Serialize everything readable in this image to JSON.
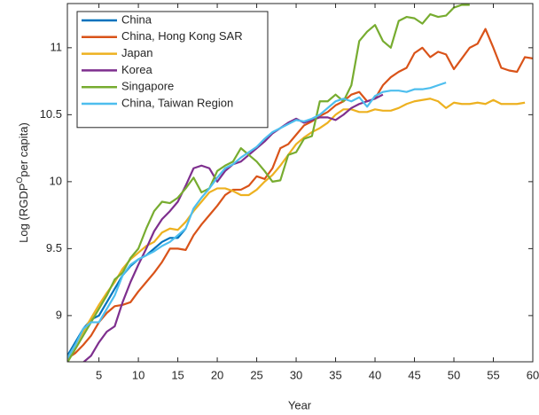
{
  "chart_data": {
    "type": "line",
    "xlabel": "Year",
    "ylabel": [
      "Log (RGDP",
      "O",
      "per capita)"
    ],
    "x": [
      1,
      2,
      3,
      4,
      5,
      6,
      7,
      8,
      9,
      10,
      11,
      12,
      13,
      14,
      15,
      16,
      17,
      18,
      19,
      20,
      21,
      22,
      23,
      24,
      25,
      26,
      27,
      28,
      29,
      30,
      31,
      32,
      33,
      34,
      35,
      36,
      37,
      38,
      39,
      40,
      41,
      42,
      43,
      44,
      45,
      46,
      47,
      48,
      49,
      50,
      51,
      52,
      53,
      54,
      55,
      56,
      57,
      58,
      59,
      60
    ],
    "xlim": [
      1,
      60
    ],
    "xticks": [
      5,
      10,
      15,
      20,
      25,
      30,
      35,
      40,
      45,
      50,
      55,
      60
    ],
    "ylim": [
      8.655,
      11.33
    ],
    "yticks": [
      9,
      9.5,
      10,
      10.5,
      11
    ],
    "grid": false,
    "legend": "upper-left",
    "series": [
      {
        "name": "China",
        "color": "#0072BD",
        "values": [
          8.7,
          8.8,
          8.9,
          8.97,
          9.0,
          9.1,
          9.2,
          9.3,
          9.37,
          9.42,
          9.45,
          9.5,
          9.55,
          9.58,
          9.58,
          9.65,
          null,
          null,
          null,
          null,
          null,
          null,
          null,
          null,
          null,
          null,
          null,
          null,
          null,
          null,
          null,
          null,
          null,
          null,
          null,
          null,
          null,
          null,
          null,
          null,
          null,
          null,
          null,
          null,
          null,
          null,
          null,
          null,
          null,
          null,
          null,
          null,
          null,
          null,
          null,
          null,
          null,
          null,
          null,
          null
        ]
      },
      {
        "name": "China, Hong Kong SAR",
        "color": "#D95319",
        "values": [
          8.68,
          8.72,
          8.78,
          8.85,
          8.95,
          9.02,
          9.07,
          9.08,
          9.1,
          9.18,
          9.25,
          9.32,
          9.4,
          9.5,
          9.5,
          9.49,
          9.6,
          9.68,
          9.75,
          9.82,
          9.9,
          9.94,
          9.94,
          9.97,
          10.04,
          10.02,
          10.1,
          10.25,
          10.28,
          10.35,
          10.42,
          10.45,
          10.49,
          10.52,
          10.57,
          10.6,
          10.65,
          10.67,
          10.6,
          10.62,
          10.72,
          10.78,
          10.82,
          10.85,
          10.96,
          11.0,
          10.93,
          10.97,
          10.95,
          10.84,
          10.92,
          11.0,
          11.03,
          11.14,
          11.0,
          10.85,
          10.83,
          10.82,
          10.93,
          10.92
        ]
      },
      {
        "name": "Japan",
        "color": "#EDB120",
        "values": [
          8.68,
          8.78,
          8.88,
          8.98,
          9.08,
          9.17,
          9.25,
          9.35,
          9.42,
          9.47,
          9.52,
          9.55,
          9.62,
          9.65,
          9.64,
          9.7,
          9.78,
          9.85,
          9.92,
          9.95,
          9.95,
          9.93,
          9.9,
          9.9,
          9.94,
          10.0,
          10.05,
          10.12,
          10.2,
          10.28,
          10.33,
          10.37,
          10.4,
          10.44,
          10.5,
          10.54,
          10.54,
          10.52,
          10.52,
          10.54,
          10.53,
          10.53,
          10.55,
          10.58,
          10.6,
          10.61,
          10.62,
          10.6,
          10.55,
          10.59,
          10.58,
          10.58,
          10.59,
          10.58,
          10.61,
          10.58,
          10.58,
          10.58,
          10.59,
          null
        ]
      },
      {
        "name": "Korea",
        "color": "#7E2F8E",
        "values": [
          8.62,
          8.6,
          8.65,
          8.7,
          8.8,
          8.88,
          8.92,
          9.1,
          9.25,
          9.38,
          9.5,
          9.63,
          9.72,
          9.78,
          9.85,
          9.97,
          10.1,
          10.12,
          10.1,
          10.0,
          10.08,
          10.13,
          10.15,
          10.2,
          10.25,
          10.3,
          10.36,
          10.4,
          10.44,
          10.47,
          10.44,
          10.46,
          10.48,
          10.48,
          10.46,
          10.5,
          10.55,
          10.58,
          10.6,
          10.62,
          10.65,
          null,
          null,
          null,
          null,
          null,
          null,
          null,
          null,
          null,
          null,
          null,
          null,
          null,
          null,
          null,
          null,
          null,
          null,
          null
        ]
      },
      {
        "name": "Singapore",
        "color": "#77AC30",
        "values": [
          8.65,
          8.75,
          8.85,
          8.95,
          9.05,
          9.15,
          9.27,
          9.32,
          9.43,
          9.5,
          9.65,
          9.78,
          9.85,
          9.84,
          9.88,
          9.95,
          10.03,
          9.92,
          9.95,
          10.08,
          10.12,
          10.15,
          10.25,
          10.2,
          10.15,
          10.08,
          10.0,
          10.01,
          10.2,
          10.22,
          10.32,
          10.34,
          10.6,
          10.6,
          10.65,
          10.6,
          10.72,
          11.05,
          11.12,
          11.17,
          11.05,
          11.0,
          11.2,
          11.23,
          11.22,
          11.18,
          11.25,
          11.23,
          11.24,
          11.3,
          11.32,
          11.32,
          null,
          null,
          null,
          null,
          null,
          null,
          null,
          null
        ]
      },
      {
        "name": "China, Taiwan Region",
        "color": "#4DBEEE",
        "values": [
          8.68,
          8.78,
          8.9,
          8.95,
          8.95,
          9.05,
          9.15,
          9.3,
          9.38,
          9.42,
          9.45,
          9.48,
          9.52,
          9.55,
          9.6,
          9.65,
          9.8,
          9.88,
          9.95,
          10.03,
          10.1,
          10.13,
          10.18,
          10.22,
          10.26,
          10.32,
          10.37,
          10.4,
          10.43,
          10.46,
          10.45,
          10.47,
          10.5,
          10.55,
          10.6,
          10.62,
          10.6,
          10.63,
          10.56,
          10.64,
          10.67,
          10.68,
          10.68,
          10.67,
          10.69,
          10.69,
          10.7,
          10.72,
          10.74,
          null,
          null,
          null,
          null,
          null,
          null,
          null,
          null,
          null,
          null,
          null
        ]
      }
    ]
  }
}
